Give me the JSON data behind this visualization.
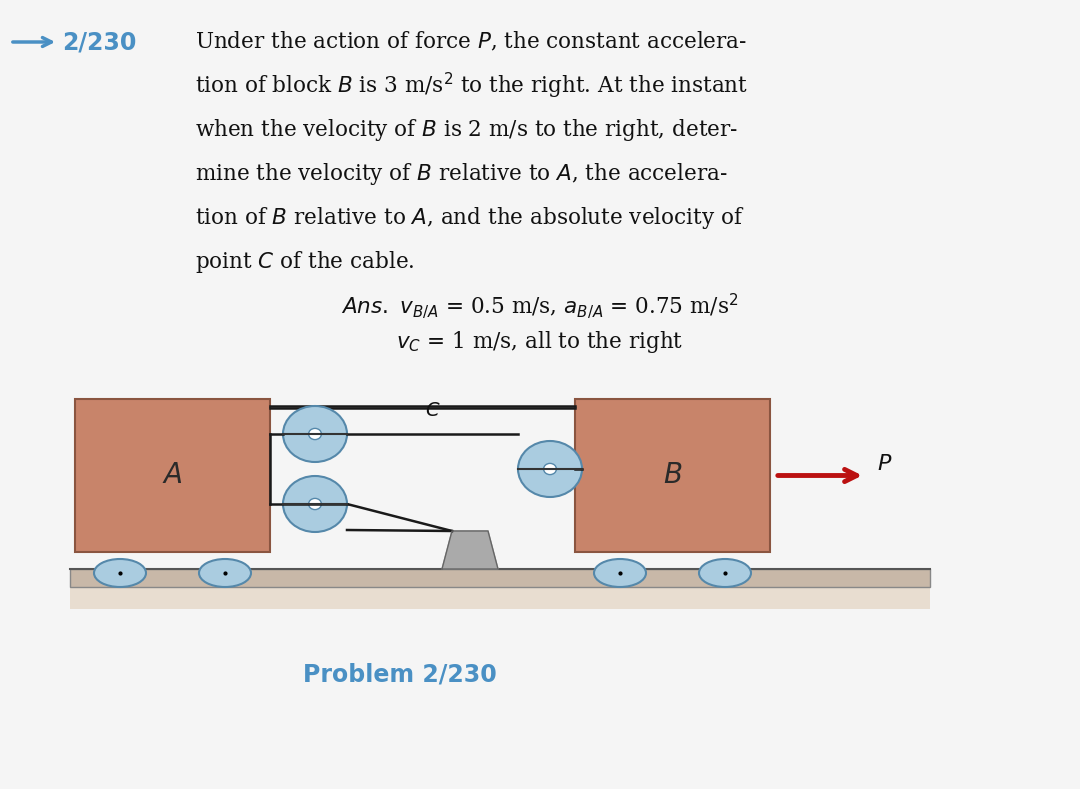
{
  "bg_color": "#f5f5f5",
  "title_number": "2/230",
  "title_number_color": "#4a90c4",
  "body_text_lines": [
    "Under the action of force $P$, the constant accelera-",
    "tion of block $B$ is 3 m/s$^2$ to the right. At the instant",
    "when the velocity of $B$ is 2 m/s to the right, deter-",
    "mine the velocity of $B$ relative to $A$, the accelera-",
    "tion of $B$ relative to $A$, and the absolute velocity of",
    "point $C$ of the cable."
  ],
  "ans_line1": "$\\mathit{Ans.}$ $v_{B/A}$ = 0.5 m/s, $a_{B/A}$ = 0.75 m/s$^2$",
  "ans_line2": "$v_C$ = 1 m/s, all to the right",
  "problem_label": "Problem 2/230",
  "problem_label_color": "#4a90c4",
  "block_color": "#c8846a",
  "block_edge_color": "#8a5540",
  "cable_color": "#1a1a1a",
  "arrow_color": "#bb1111",
  "pulley_color": "#aacce0",
  "pulley_edge_color": "#5588aa",
  "wheel_color": "#aacce0",
  "wheel_edge_color": "#5588aa",
  "ground_top_color": "#c8b8a8",
  "ground_bot_color": "#e8ddd0",
  "post_color": "#aaaaaa",
  "post_edge_color": "#666666"
}
